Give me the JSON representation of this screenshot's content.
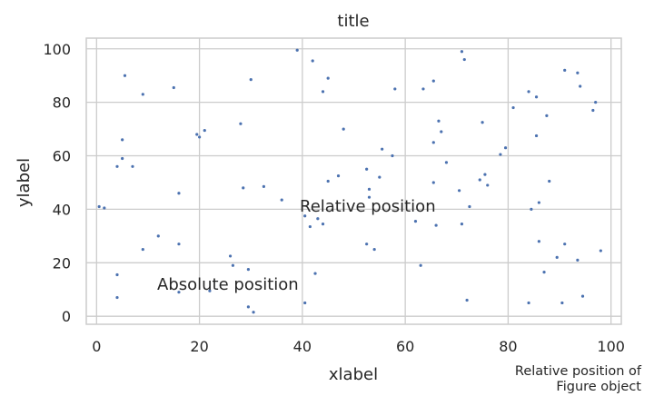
{
  "chart_data": {
    "type": "scatter",
    "title": "title",
    "xlabel": "xlabel",
    "ylabel": "ylabel",
    "xlim": [
      -2,
      102
    ],
    "ylim": [
      -3,
      104
    ],
    "xticks": [
      0,
      20,
      40,
      60,
      80,
      100
    ],
    "yticks": [
      0,
      20,
      40,
      60,
      80,
      100
    ],
    "grid": true,
    "color": "#4c72b0",
    "annotations": [
      {
        "text": "Absolute position",
        "x": 10,
        "y": 10,
        "coords": "data"
      },
      {
        "text": "Relative position",
        "ax_frac_x": 0.5,
        "ax_frac_y": 0.5,
        "coords": "axes fraction"
      },
      {
        "text_lines": [
          "Relative position of",
          "Figure object"
        ],
        "fig_frac_x": 0.98,
        "fig_frac_y": 0.02,
        "coords": "figure fraction"
      }
    ],
    "points": [
      [
        5.5,
        90
      ],
      [
        9,
        83
      ],
      [
        15,
        85.5
      ],
      [
        30,
        88.5
      ],
      [
        39,
        99.5
      ],
      [
        42,
        95.5
      ],
      [
        44,
        84
      ],
      [
        45,
        89
      ],
      [
        58,
        85
      ],
      [
        63.5,
        85
      ],
      [
        65.5,
        88
      ],
      [
        71,
        99
      ],
      [
        71.5,
        96
      ],
      [
        84,
        84
      ],
      [
        85.5,
        82
      ],
      [
        91,
        92
      ],
      [
        93.5,
        91
      ],
      [
        94,
        86
      ],
      [
        96.5,
        77
      ],
      [
        97,
        80
      ],
      [
        87.5,
        75
      ],
      [
        81,
        78
      ],
      [
        75,
        72.5
      ],
      [
        66.5,
        73
      ],
      [
        67,
        69
      ],
      [
        65.5,
        65
      ],
      [
        48,
        70
      ],
      [
        28,
        72
      ],
      [
        5,
        66
      ],
      [
        4,
        56
      ],
      [
        5,
        59
      ],
      [
        7,
        56
      ],
      [
        19.5,
        68
      ],
      [
        20,
        67
      ],
      [
        21,
        69.5
      ],
      [
        55.5,
        62.5
      ],
      [
        57.5,
        60
      ],
      [
        79.5,
        63
      ],
      [
        78.5,
        60.5
      ],
      [
        85.5,
        67.5
      ],
      [
        68,
        57.5
      ],
      [
        75.5,
        53
      ],
      [
        76,
        49
      ],
      [
        74.5,
        51
      ],
      [
        52.5,
        55
      ],
      [
        55,
        52
      ],
      [
        47,
        52.5
      ],
      [
        45,
        50.5
      ],
      [
        53,
        47.5
      ],
      [
        65.5,
        50
      ],
      [
        70.5,
        47
      ],
      [
        88,
        50.5
      ],
      [
        16,
        46
      ],
      [
        28.5,
        48
      ],
      [
        32.5,
        48.5
      ],
      [
        36,
        43.5
      ],
      [
        0.5,
        41
      ],
      [
        1.5,
        40.5
      ],
      [
        40.5,
        37.5
      ],
      [
        41.5,
        33.5
      ],
      [
        43,
        36.5
      ],
      [
        44,
        34.5
      ],
      [
        53,
        44.5
      ],
      [
        62,
        35.5
      ],
      [
        66,
        34
      ],
      [
        71,
        34.5
      ],
      [
        72.5,
        41
      ],
      [
        84.5,
        40
      ],
      [
        86,
        42.5
      ],
      [
        12,
        30
      ],
      [
        9,
        25
      ],
      [
        16,
        27
      ],
      [
        26,
        22.5
      ],
      [
        26.5,
        19
      ],
      [
        29.5,
        17.5
      ],
      [
        42.5,
        16
      ],
      [
        52.5,
        27
      ],
      [
        54,
        25
      ],
      [
        63,
        19
      ],
      [
        86,
        28
      ],
      [
        87,
        16.5
      ],
      [
        91,
        27
      ],
      [
        93.5,
        21
      ],
      [
        98,
        24.5
      ],
      [
        4,
        15.5
      ],
      [
        4,
        7
      ],
      [
        16,
        9
      ],
      [
        22,
        9.5
      ],
      [
        29.5,
        3.5
      ],
      [
        30.5,
        1.5
      ],
      [
        40.5,
        5
      ],
      [
        72,
        6
      ],
      [
        84,
        5
      ],
      [
        89.5,
        22
      ],
      [
        90.5,
        5
      ],
      [
        94.5,
        7.5
      ]
    ]
  }
}
